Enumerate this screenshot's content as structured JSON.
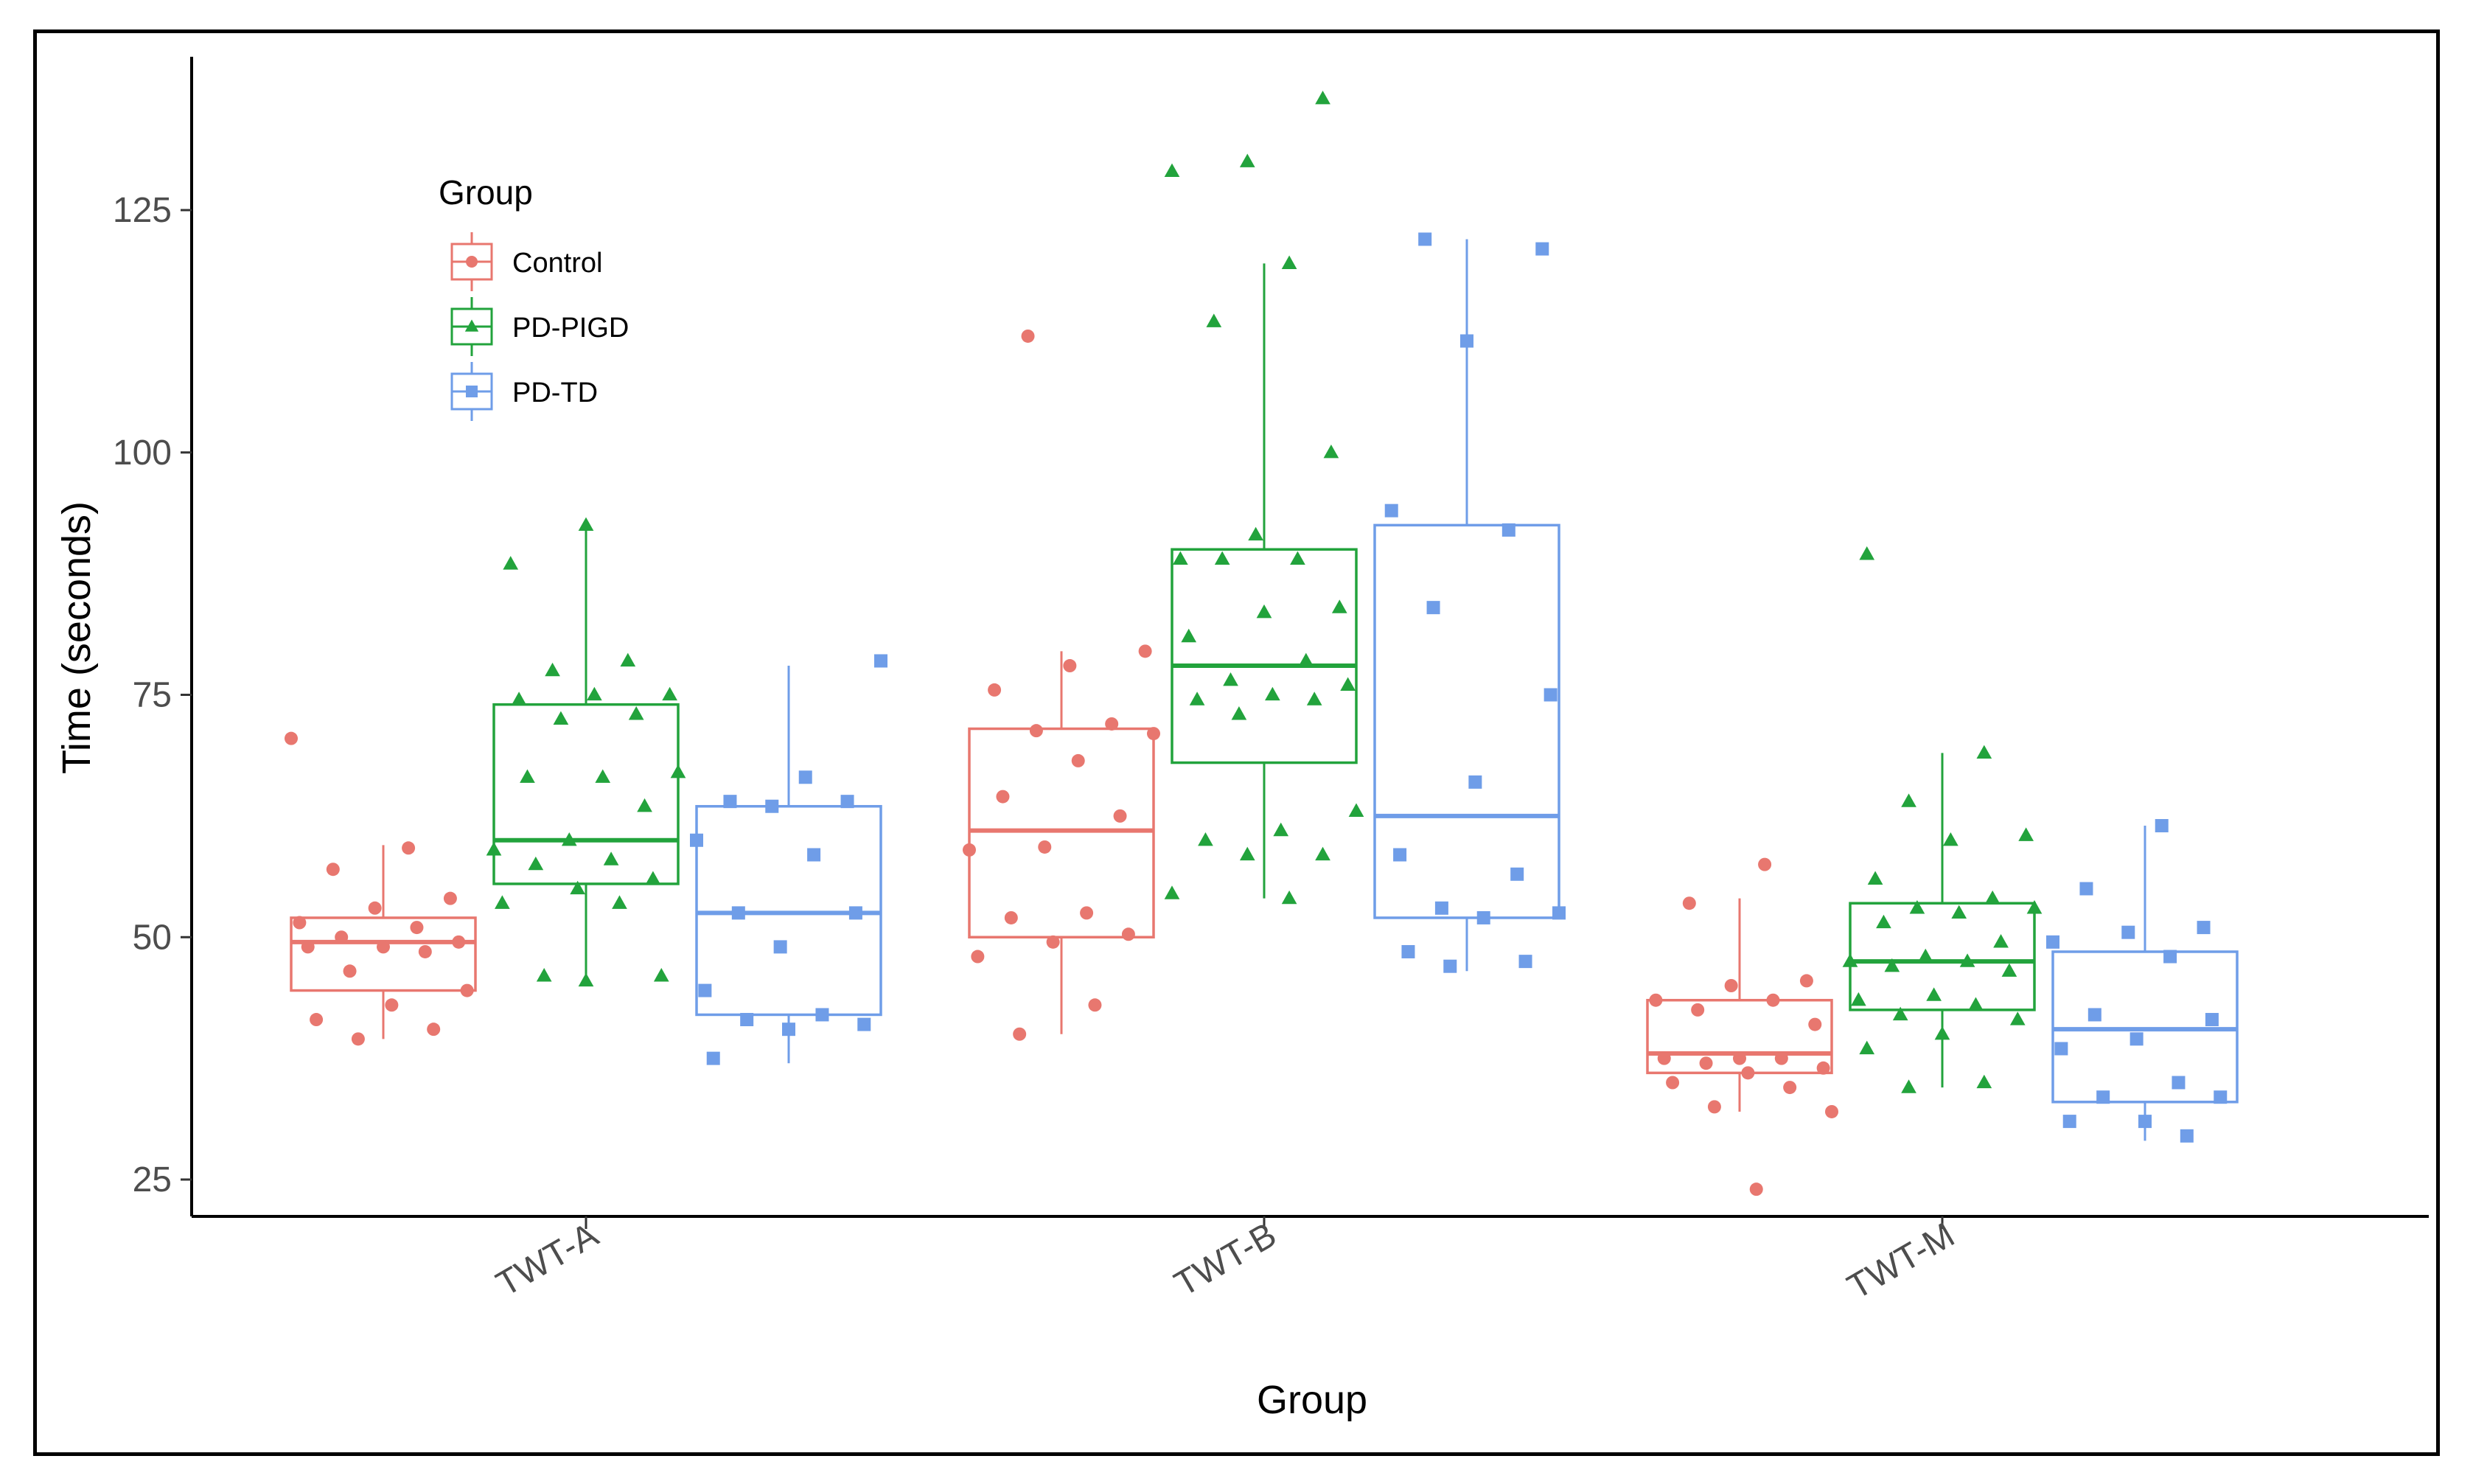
{
  "chart_data": {
    "type": "boxplot",
    "title": "",
    "xlabel": "Group",
    "ylabel": "Time (seconds)",
    "ylim": [
      18,
      143
    ],
    "yticks": [
      25,
      50,
      75,
      100,
      125
    ],
    "grid": false,
    "categories": [
      "TWT-A",
      "TWT-B",
      "TWT-M"
    ],
    "legend": {
      "title": "Group",
      "position": "top-left",
      "entries": [
        {
          "name": "Control",
          "color": "#e8776f",
          "shape": "circle"
        },
        {
          "name": "PD-PIGD",
          "color": "#22a33c",
          "shape": "triangle"
        },
        {
          "name": "PD-TD",
          "color": "#6f9de8",
          "shape": "square"
        }
      ]
    },
    "series": [
      {
        "name": "Control",
        "color": "#e8776f",
        "shape": "circle",
        "boxes": [
          {
            "category": "TWT-A",
            "whisker_low": 39.5,
            "q1": 44.5,
            "median": 49.5,
            "q3": 52,
            "whisker_high": 59.5,
            "points": [
              70.5,
              59.2,
              57,
              54,
              53,
              51.5,
              51,
              50,
              49.5,
              49,
              49,
              48.5,
              46.5,
              44.5,
              43,
              41.5,
              40.5,
              39.5
            ]
          },
          {
            "category": "TWT-B",
            "whisker_low": 40,
            "q1": 50,
            "median": 61,
            "q3": 71.5,
            "whisker_high": 79.5,
            "points": [
              112,
              79.5,
              78,
              75.5,
              72,
              71.3,
              71,
              68.2,
              64.5,
              62.5,
              59.3,
              59,
              52.5,
              52,
              50.3,
              49.5,
              48,
              43,
              40
            ]
          },
          {
            "category": "TWT-M",
            "whisker_low": 32,
            "q1": 36,
            "median": 38,
            "q3": 43.5,
            "whisker_high": 54,
            "points": [
              57.5,
              53.5,
              45.5,
              45,
              43.5,
              43.5,
              42.5,
              41,
              37.5,
              37.5,
              37.5,
              37,
              36.5,
              36,
              35,
              34.5,
              32.5,
              32,
              24
            ]
          }
        ]
      },
      {
        "name": "PD-PIGD",
        "color": "#22a33c",
        "shape": "triangle",
        "boxes": [
          {
            "category": "TWT-A",
            "whisker_low": 45.5,
            "q1": 55.5,
            "median": 60,
            "q3": 74,
            "whisker_high": 92.5,
            "points": [
              92.5,
              88.5,
              78.5,
              77.5,
              75,
              75,
              74.5,
              73,
              72.5,
              67,
              66.5,
              66.5,
              63.5,
              60,
              59,
              58,
              57.5,
              56,
              55,
              53.5,
              53.5,
              46,
              46,
              45.5
            ]
          },
          {
            "category": "TWT-B",
            "whisker_low": 54,
            "q1": 68,
            "median": 78,
            "q3": 90,
            "whisker_high": 119.5,
            "points": [
              136.5,
              130,
              129,
              119.5,
              113.5,
              100,
              91.5,
              89,
              89,
              89,
              84,
              83.5,
              81,
              78.5,
              76.5,
              76,
              75,
              74.5,
              74.5,
              73,
              63,
              61,
              60,
              58.5,
              58.5,
              54.5,
              54
            ]
          },
          {
            "category": "TWT-M",
            "whisker_low": 34.5,
            "q1": 42.5,
            "median": 47.5,
            "q3": 53.5,
            "whisker_high": 69,
            "points": [
              89.5,
              69,
              64,
              60.5,
              60,
              56,
              54,
              53,
              53,
              52.5,
              51.5,
              49.5,
              48,
              47.5,
              47.5,
              47,
              46.5,
              44,
              43.5,
              43,
              42,
              41.5,
              40,
              38.5,
              35,
              34.5
            ]
          }
        ]
      },
      {
        "name": "PD-TD",
        "color": "#6f9de8",
        "shape": "square",
        "boxes": [
          {
            "category": "TWT-A",
            "whisker_low": 37,
            "q1": 42,
            "median": 52.5,
            "q3": 63.5,
            "whisker_high": 78,
            "points": [
              78.5,
              66.5,
              64,
              64,
              63.5,
              60,
              58.5,
              52.5,
              52.5,
              49,
              44.5,
              42,
              41.5,
              41,
              40.5,
              37.5
            ]
          },
          {
            "category": "TWT-B",
            "whisker_low": 46.5,
            "q1": 52,
            "median": 62.5,
            "q3": 92.5,
            "whisker_high": 122,
            "points": [
              122,
              121,
              111.5,
              94,
              92,
              84,
              75,
              66,
              58.5,
              56.5,
              53,
              52.5,
              52,
              48.5,
              47.5,
              47
            ]
          },
          {
            "category": "TWT-M",
            "whisker_low": 29,
            "q1": 33,
            "median": 40.5,
            "q3": 48.5,
            "whisker_high": 61.5,
            "points": [
              61.5,
              55,
              51,
              50.5,
              49.5,
              48,
              42,
              41.5,
              39.5,
              38.5,
              35,
              33.5,
              33.5,
              31,
              31,
              29.5
            ]
          }
        ]
      }
    ]
  }
}
